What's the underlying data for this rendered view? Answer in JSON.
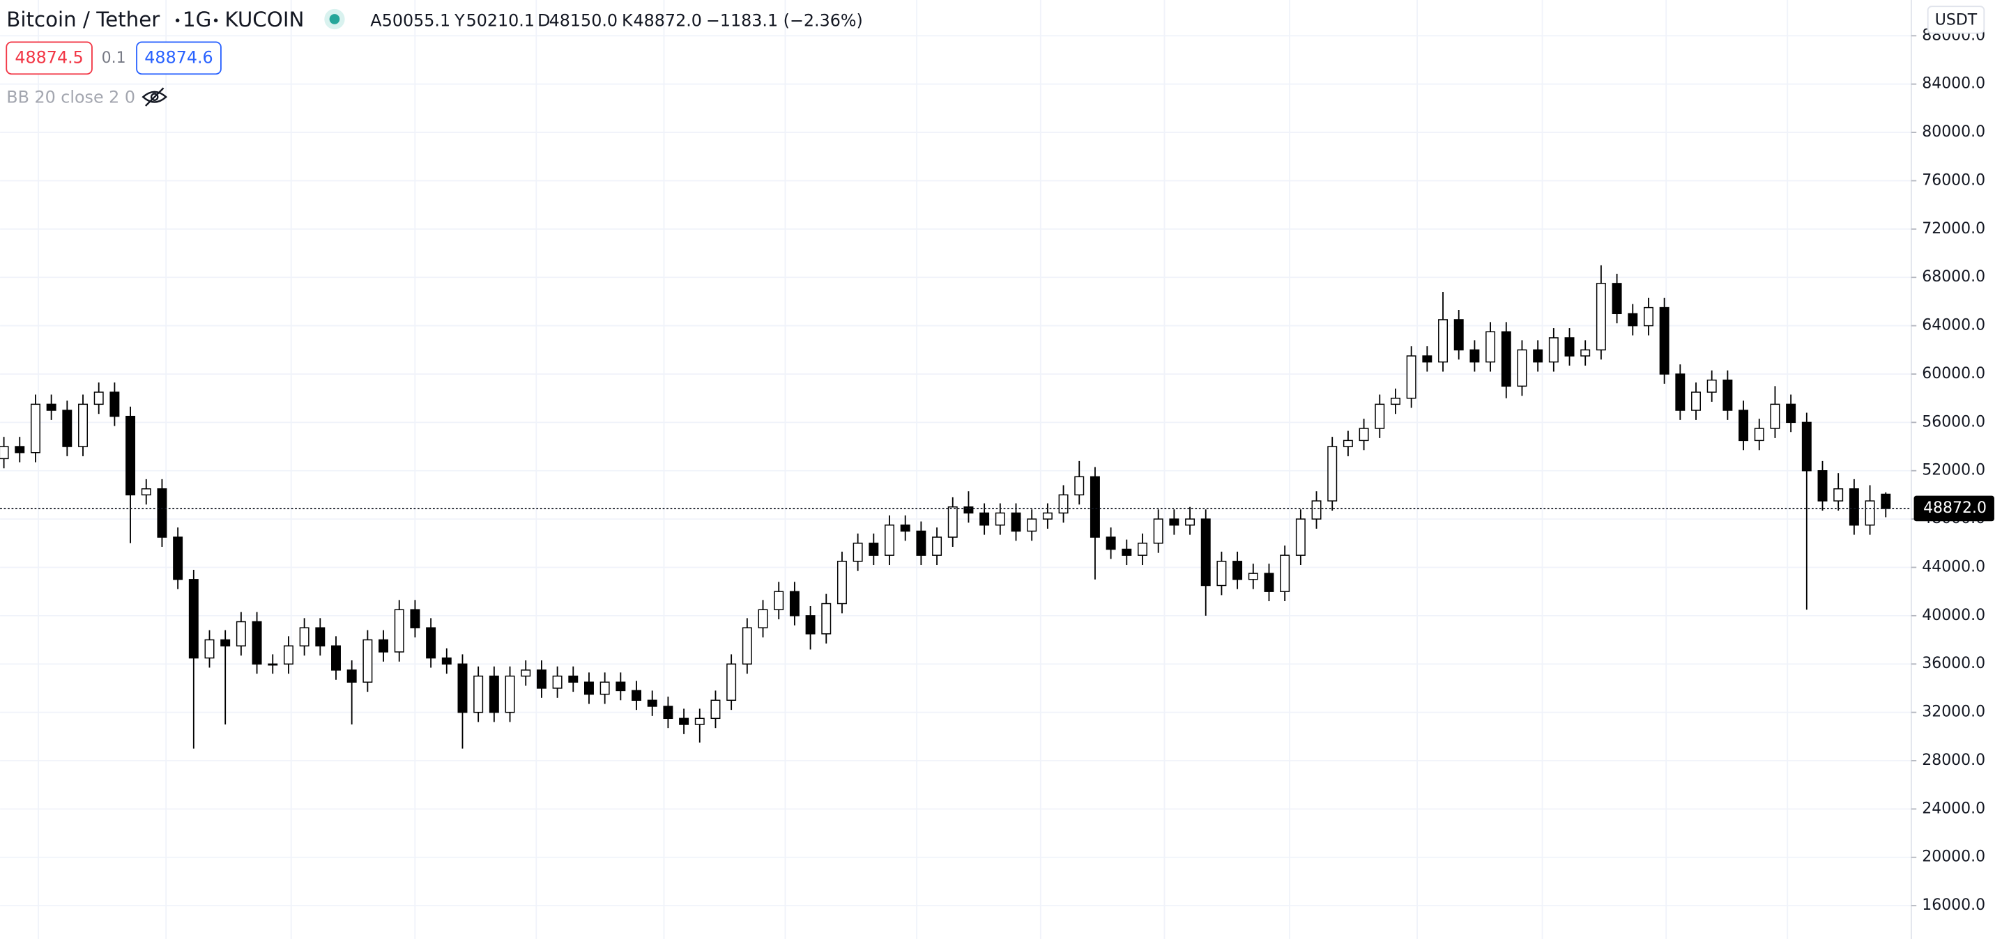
{
  "header": {
    "symbol": "Bitcoin / Tether",
    "interval": "1G",
    "exchange": "KUCOIN",
    "ohlc": [
      {
        "label": "A",
        "value": "50055.1"
      },
      {
        "label": "Y",
        "value": "50210.1"
      },
      {
        "label": "D",
        "value": "48150.0"
      },
      {
        "label": "K",
        "value": "48872.0"
      }
    ],
    "change": "−1183.1 (−2.36%)"
  },
  "quote": {
    "bid": "48874.5",
    "spread": "0.1",
    "ask": "48874.6"
  },
  "indicator": "BB 20 close 2 0",
  "chart_data": {
    "type": "candlestick",
    "currency": "USDT",
    "open": [
      53000,
      54000,
      53500,
      57500,
      57000,
      54000,
      57500,
      58500,
      56500,
      50000,
      50500,
      46500,
      43000,
      36500,
      38000,
      37500,
      39500,
      36000,
      36000,
      37500,
      39000,
      37500,
      35500,
      34500,
      38000,
      37000,
      40500,
      39000,
      36500,
      36000,
      32000,
      35000,
      32000,
      35000,
      35500,
      34000,
      35000,
      34500,
      33500,
      34500,
      33800,
      33000,
      32500,
      31500,
      31000,
      31500,
      33000,
      36000,
      39000,
      40500,
      42000,
      40000,
      38500,
      41000,
      44500,
      46000,
      45000,
      47500,
      47000,
      45000,
      46500,
      49000,
      48500,
      47500,
      48500,
      47000,
      48000,
      48500,
      50000,
      51500,
      46500,
      45500,
      45000,
      46000,
      48000,
      47500,
      48000,
      42500,
      44500,
      43000,
      43500,
      42000,
      45000,
      48000,
      49500,
      54000,
      54500,
      55500,
      57500,
      58000,
      61500,
      61000,
      64500,
      62000,
      61000,
      63500,
      59000,
      62000,
      61000,
      63000,
      61500,
      62000,
      67500,
      65000,
      64000,
      65500,
      60000,
      57000,
      58500,
      59500,
      57000,
      54500,
      55500,
      57500,
      56000,
      52000,
      49500,
      50500,
      47500,
      50055.1
    ],
    "high": [
      54800,
      54800,
      58300,
      58300,
      57800,
      58300,
      59300,
      59300,
      57300,
      51300,
      51300,
      47300,
      43800,
      38800,
      38800,
      40300,
      40300,
      36800,
      38300,
      39800,
      39800,
      38300,
      36300,
      38800,
      38800,
      41300,
      41300,
      39800,
      37300,
      36800,
      35800,
      35800,
      35800,
      36300,
      36300,
      35800,
      35800,
      35300,
      35300,
      35300,
      34600,
      33800,
      33300,
      32300,
      32300,
      33800,
      36800,
      39800,
      41300,
      42800,
      42800,
      40800,
      41800,
      45300,
      46800,
      46800,
      48300,
      48300,
      47800,
      47300,
      49800,
      50300,
      49300,
      49300,
      49300,
      48800,
      49300,
      50800,
      52800,
      52300,
      47300,
      46300,
      46800,
      48800,
      48800,
      49000,
      48800,
      45300,
      45300,
      44300,
      44300,
      45800,
      48800,
      50300,
      54800,
      55300,
      56300,
      58300,
      58800,
      62300,
      62300,
      66800,
      65300,
      62800,
      64300,
      64300,
      62800,
      62800,
      63800,
      63800,
      62800,
      69000,
      68300,
      65800,
      66300,
      66300,
      60800,
      59300,
      60300,
      60300,
      57800,
      56300,
      59000,
      58300,
      56800,
      52800,
      51800,
      51300,
      50800,
      50210.1
    ],
    "low": [
      52200,
      52700,
      52700,
      56200,
      53200,
      53200,
      56700,
      55700,
      46000,
      49200,
      45700,
      42200,
      29000,
      35700,
      31000,
      36700,
      35200,
      35200,
      35200,
      36700,
      36700,
      34700,
      31000,
      33700,
      36200,
      36200,
      38200,
      35700,
      35200,
      29000,
      31200,
      31200,
      31200,
      34200,
      33200,
      33200,
      33700,
      32700,
      32700,
      33000,
      32200,
      31700,
      30700,
      30200,
      29500,
      30700,
      32200,
      35200,
      38200,
      39700,
      39200,
      37200,
      37700,
      40200,
      43700,
      44200,
      44200,
      46200,
      44200,
      44200,
      45700,
      47700,
      46700,
      46700,
      46200,
      46200,
      47200,
      47700,
      49200,
      43000,
      44700,
      44200,
      44200,
      45200,
      46700,
      46700,
      40000,
      41700,
      42200,
      42200,
      41200,
      41200,
      44200,
      47200,
      48700,
      53200,
      53700,
      54700,
      56700,
      57200,
      60200,
      60200,
      61200,
      60200,
      60200,
      58000,
      58200,
      60200,
      60200,
      60700,
      60700,
      61200,
      64200,
      63200,
      63200,
      59200,
      56200,
      56200,
      57700,
      56200,
      53700,
      53700,
      54700,
      55200,
      40500,
      48700,
      48700,
      46700,
      46700,
      48150
    ],
    "close": [
      54000,
      53500,
      57500,
      57000,
      54000,
      57500,
      58500,
      56500,
      50000,
      50500,
      46500,
      43000,
      36500,
      38000,
      37500,
      39500,
      36000,
      36000,
      37500,
      39000,
      37500,
      35500,
      34500,
      38000,
      37000,
      40500,
      39000,
      36500,
      36000,
      32000,
      35000,
      32000,
      35000,
      35500,
      34000,
      35000,
      34500,
      33500,
      34500,
      33800,
      33000,
      32500,
      31500,
      31000,
      31500,
      33000,
      36000,
      39000,
      40500,
      42000,
      40000,
      38500,
      41000,
      44500,
      46000,
      45000,
      47500,
      47000,
      45000,
      46500,
      49000,
      48500,
      47500,
      48500,
      47000,
      48000,
      48500,
      50000,
      51500,
      46500,
      45500,
      45000,
      46000,
      48000,
      47500,
      48000,
      42500,
      44500,
      43000,
      43500,
      42000,
      45000,
      48000,
      49500,
      54000,
      54500,
      55500,
      57500,
      58000,
      61500,
      61000,
      64500,
      62000,
      61000,
      63500,
      59000,
      62000,
      61000,
      63000,
      61500,
      62000,
      67500,
      65000,
      64000,
      65500,
      60000,
      57000,
      58500,
      59500,
      57000,
      54500,
      55500,
      57500,
      56000,
      52000,
      49500,
      50500,
      47500,
      49500,
      48872
    ],
    "up_color": "#ffffff",
    "down_color": "#000000",
    "outline_color": "#000000",
    "ylim": [
      13240,
      90960
    ],
    "yticks": [
      {
        "value": 16000,
        "label": "16000.0"
      },
      {
        "value": 20000,
        "label": "20000.0"
      },
      {
        "value": 24000,
        "label": "24000.0"
      },
      {
        "value": 28000,
        "label": "28000.0"
      },
      {
        "value": 32000,
        "label": "32000.0"
      },
      {
        "value": 36000,
        "label": "36000.0"
      },
      {
        "value": 40000,
        "label": "40000.0"
      },
      {
        "value": 44000,
        "label": "44000.0"
      },
      {
        "value": 48000,
        "label": "48000.0"
      },
      {
        "value": 52000,
        "label": "52000.0"
      },
      {
        "value": 56000,
        "label": "56000.0"
      },
      {
        "value": 60000,
        "label": "60000.0"
      },
      {
        "value": 64000,
        "label": "64000.0"
      },
      {
        "value": 68000,
        "label": "68000.0"
      },
      {
        "value": 72000,
        "label": "72000.0"
      },
      {
        "value": 76000,
        "label": "76000.0"
      },
      {
        "value": 80000,
        "label": "80000.0"
      },
      {
        "value": 84000,
        "label": "84000.0"
      },
      {
        "value": 88000,
        "label": "88000.0"
      }
    ],
    "last_price": {
      "value": 48872,
      "label": "48872.0"
    },
    "grid": true
  }
}
